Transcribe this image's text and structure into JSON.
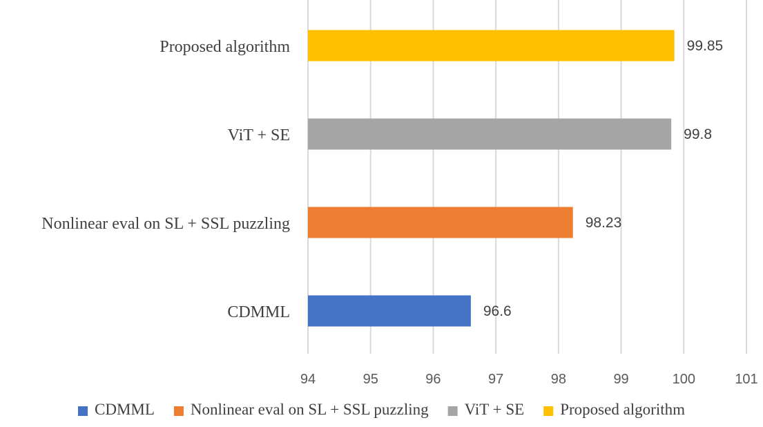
{
  "chart_data": {
    "type": "bar",
    "orientation": "horizontal",
    "title": "",
    "xlabel": "",
    "ylabel": "",
    "xlim": [
      94,
      101
    ],
    "ticks": [
      "94",
      "95",
      "96",
      "97",
      "98",
      "99",
      "100",
      "101"
    ],
    "grid": true,
    "legend_position": "bottom",
    "series": [
      {
        "name": "CDMML",
        "value": 96.6,
        "label": "96.6",
        "color": "#4472c4"
      },
      {
        "name": "Nonlinear eval on SL + SSL puzzling",
        "value": 98.23,
        "label": "98.23",
        "color": "#ed7d31"
      },
      {
        "name": "ViT + SE",
        "value": 99.8,
        "label": "99.8",
        "color": "#a5a5a5"
      },
      {
        "name": "Proposed algorithm",
        "value": 99.85,
        "label": "99.85",
        "color": "#ffc000"
      }
    ]
  }
}
